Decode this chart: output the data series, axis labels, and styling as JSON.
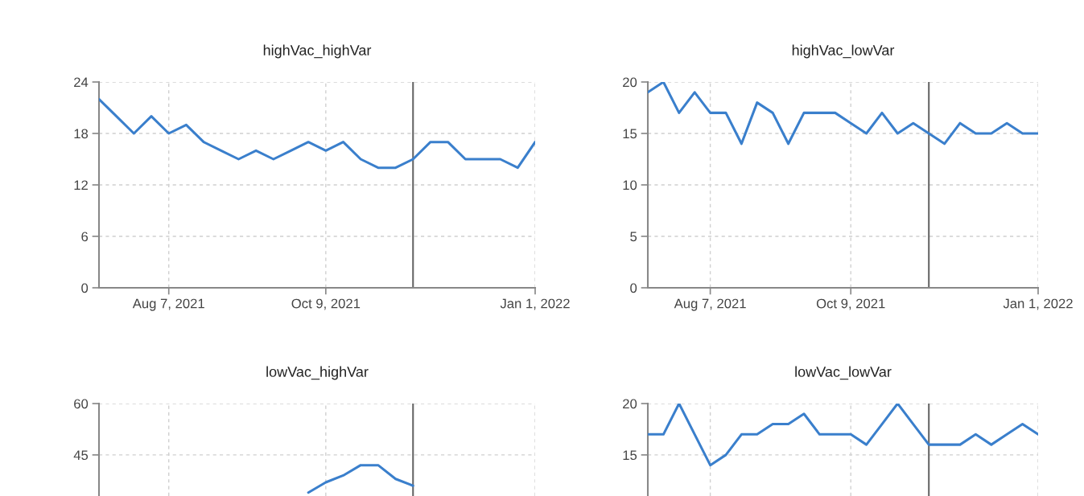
{
  "chart_data": [
    {
      "type": "line",
      "title": "highVac_highVar",
      "x": [
        "2021-07-10",
        "2021-07-17",
        "2021-07-24",
        "2021-07-31",
        "2021-08-07",
        "2021-08-14",
        "2021-08-21",
        "2021-08-28",
        "2021-09-04",
        "2021-09-11",
        "2021-09-18",
        "2021-09-25",
        "2021-10-02",
        "2021-10-09",
        "2021-10-16",
        "2021-10-23",
        "2021-10-30",
        "2021-11-06",
        "2021-11-13",
        "2021-11-20",
        "2021-11-27",
        "2021-12-04",
        "2021-12-11",
        "2021-12-18",
        "2021-12-25",
        "2022-01-01"
      ],
      "series": [
        {
          "color": "#3a7fcc",
          "values": [
            22,
            20,
            18,
            20,
            18,
            19,
            17,
            16,
            15,
            16,
            15,
            16,
            17,
            16,
            17,
            15,
            14,
            14,
            15,
            17,
            17,
            15,
            15,
            15,
            14,
            17
          ]
        }
      ],
      "xlim": [
        "2021-07-10",
        "2022-01-01"
      ],
      "xticks": [
        {
          "value": "2021-08-07",
          "label": "Aug 7, 2021"
        },
        {
          "value": "2021-10-09",
          "label": "Oct 9, 2021"
        },
        {
          "value": "2022-01-01",
          "label": "Jan 1, 2022"
        }
      ],
      "ylim": [
        0,
        24
      ],
      "yticks": [
        0,
        6,
        12,
        18,
        24
      ],
      "grid": true,
      "ref_lines": [
        {
          "axis": "x",
          "value": "2021-11-13",
          "color": "#666666"
        }
      ]
    },
    {
      "type": "line",
      "title": "highVac_lowVar",
      "x": [
        "2021-07-10",
        "2021-07-17",
        "2021-07-24",
        "2021-07-31",
        "2021-08-07",
        "2021-08-14",
        "2021-08-21",
        "2021-08-28",
        "2021-09-04",
        "2021-09-11",
        "2021-09-18",
        "2021-09-25",
        "2021-10-02",
        "2021-10-09",
        "2021-10-16",
        "2021-10-23",
        "2021-10-30",
        "2021-11-06",
        "2021-11-13",
        "2021-11-20",
        "2021-11-27",
        "2021-12-04",
        "2021-12-11",
        "2021-12-18",
        "2021-12-25",
        "2022-01-01"
      ],
      "series": [
        {
          "color": "#3a7fcc",
          "values": [
            19,
            20,
            17,
            19,
            17,
            17,
            14,
            18,
            17,
            14,
            17,
            17,
            17,
            16,
            15,
            17,
            15,
            16,
            15,
            14,
            16,
            15,
            15,
            16,
            15,
            15
          ]
        }
      ],
      "xlim": [
        "2021-07-10",
        "2022-01-01"
      ],
      "xticks": [
        {
          "value": "2021-08-07",
          "label": "Aug 7, 2021"
        },
        {
          "value": "2021-10-09",
          "label": "Oct 9, 2021"
        },
        {
          "value": "2022-01-01",
          "label": "Jan 1, 2022"
        }
      ],
      "ylim": [
        0,
        20
      ],
      "yticks": [
        0,
        5,
        10,
        15,
        20
      ],
      "grid": true,
      "ref_lines": [
        {
          "axis": "x",
          "value": "2021-11-13",
          "color": "#666666"
        }
      ]
    },
    {
      "type": "line",
      "title": "lowVac_highVar",
      "x": [
        "2021-10-02",
        "2021-10-09",
        "2021-10-16",
        "2021-10-23",
        "2021-10-30",
        "2021-11-06",
        "2021-11-13"
      ],
      "series": [
        {
          "color": "#3a7fcc",
          "values": [
            34,
            37,
            39,
            42,
            42,
            38,
            36
          ]
        }
      ],
      "xlim": [
        "2021-07-10",
        "2022-01-01"
      ],
      "xticks": [
        {
          "value": "2021-08-07",
          "label": null
        },
        {
          "value": "2021-10-09",
          "label": null
        },
        {
          "value": "2022-01-01",
          "label": null
        }
      ],
      "ylim": [
        33,
        60
      ],
      "yticks": [
        45,
        60
      ],
      "grid": true,
      "tick_labels": "y",
      "ref_lines": [
        {
          "axis": "x",
          "value": "2021-11-13",
          "color": "#666666"
        }
      ]
    },
    {
      "type": "line",
      "title": "lowVac_lowVar",
      "x": [
        "2021-07-10",
        "2021-07-17",
        "2021-07-24",
        "2021-07-31",
        "2021-08-07",
        "2021-08-14",
        "2021-08-21",
        "2021-08-28",
        "2021-09-04",
        "2021-09-11",
        "2021-09-18",
        "2021-09-25",
        "2021-10-02",
        "2021-10-09",
        "2021-10-16",
        "2021-10-23",
        "2021-10-30",
        "2021-11-06",
        "2021-11-13",
        "2021-11-20",
        "2021-11-27",
        "2021-12-04",
        "2021-12-11",
        "2021-12-18",
        "2021-12-25",
        "2022-01-01"
      ],
      "series": [
        {
          "color": "#3a7fcc",
          "values": [
            17,
            17,
            20,
            17,
            14,
            15,
            17,
            17,
            18,
            18,
            19,
            17,
            17,
            17,
            16,
            18,
            20,
            18,
            16,
            16,
            16,
            17,
            16,
            17,
            18,
            17
          ]
        }
      ],
      "xlim": [
        "2021-07-10",
        "2022-01-01"
      ],
      "xticks": [
        {
          "value": "2021-08-07",
          "label": null
        },
        {
          "value": "2021-10-09",
          "label": null
        },
        {
          "value": "2022-01-01",
          "label": null
        }
      ],
      "ylim": [
        11,
        20
      ],
      "yticks": [
        15,
        20
      ],
      "grid": true,
      "tick_labels": "y",
      "ref_lines": [
        {
          "axis": "x",
          "value": "2021-11-13",
          "color": "#666666"
        }
      ]
    }
  ]
}
